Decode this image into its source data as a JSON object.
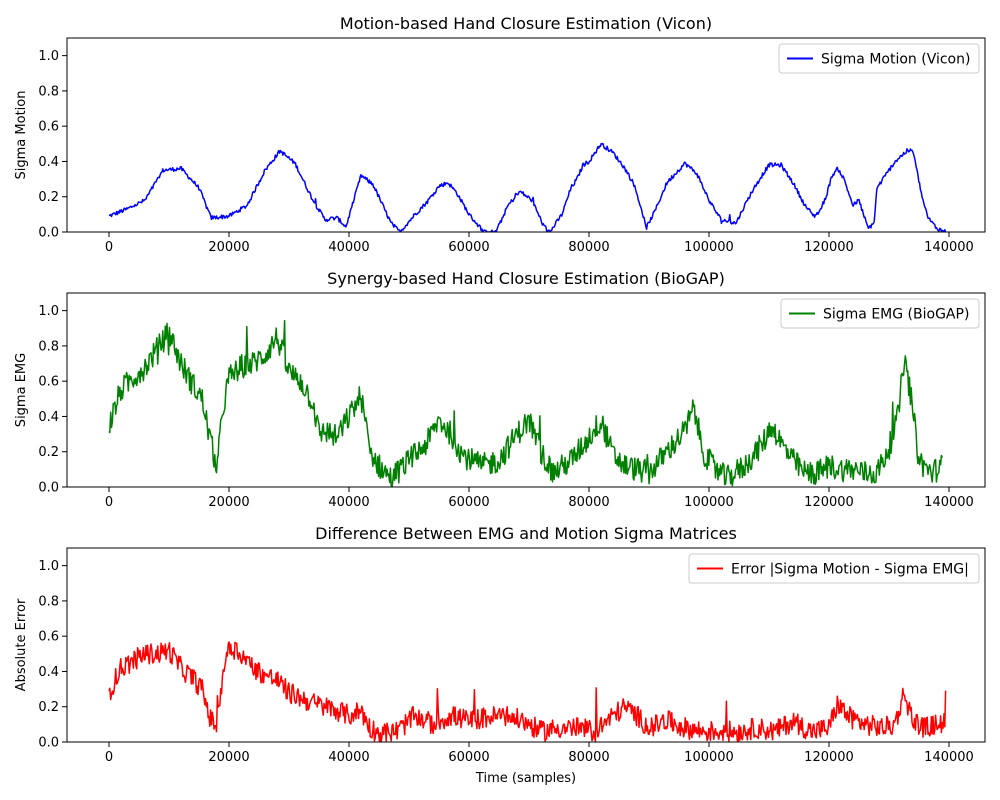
{
  "chart_data": [
    {
      "type": "line",
      "title": "Motion-based Hand Closure Estimation (Vicon)",
      "xlabel": "",
      "ylabel": "Sigma Motion",
      "xlim": [
        -7000,
        146000
      ],
      "ylim": [
        0,
        1.1
      ],
      "xticks": [
        0,
        20000,
        40000,
        60000,
        80000,
        100000,
        120000,
        140000
      ],
      "yticks": [
        0.0,
        0.2,
        0.4,
        0.6,
        0.8,
        1.0
      ],
      "legend_position": "top-right",
      "series": [
        {
          "name": "Sigma Motion (Vicon)",
          "color": "#0000ff",
          "noise": 0.012,
          "x": [
            0,
            3000,
            6000,
            9000,
            12000,
            15000,
            17000,
            20000,
            23000,
            26000,
            28500,
            31000,
            34000,
            36000,
            38000,
            39500,
            42000,
            44000,
            47000,
            48500,
            51000,
            53000,
            55000,
            56500,
            58000,
            60000,
            62500,
            64500,
            66500,
            68500,
            70500,
            72500,
            73500,
            75500,
            77000,
            78000,
            79000,
            80000,
            82000,
            84000,
            86000,
            87500,
            89000,
            89500,
            91000,
            93000,
            96000,
            98000,
            100000,
            102000,
            104500,
            105500,
            107000,
            109000,
            110000,
            112000,
            114000,
            116000,
            117500,
            118500,
            119500,
            120500,
            121500,
            122500,
            124000,
            125000,
            126500,
            127500,
            128000,
            129000,
            131000,
            133000,
            134000,
            135500,
            136500,
            138000,
            139500
          ],
          "y": [
            0.09,
            0.13,
            0.18,
            0.35,
            0.36,
            0.25,
            0.08,
            0.09,
            0.15,
            0.35,
            0.46,
            0.39,
            0.18,
            0.07,
            0.08,
            0.03,
            0.32,
            0.27,
            0.05,
            0.0,
            0.1,
            0.17,
            0.26,
            0.28,
            0.22,
            0.1,
            0.0,
            0.0,
            0.15,
            0.23,
            0.18,
            0.03,
            0.0,
            0.1,
            0.25,
            0.3,
            0.38,
            0.4,
            0.5,
            0.45,
            0.36,
            0.27,
            0.1,
            0.02,
            0.12,
            0.28,
            0.39,
            0.33,
            0.18,
            0.07,
            0.05,
            0.12,
            0.22,
            0.33,
            0.38,
            0.38,
            0.28,
            0.15,
            0.09,
            0.12,
            0.2,
            0.32,
            0.36,
            0.3,
            0.15,
            0.18,
            0.02,
            0.05,
            0.25,
            0.3,
            0.4,
            0.46,
            0.46,
            0.2,
            0.08,
            0.02,
            0.0
          ]
        }
      ]
    },
    {
      "type": "line",
      "title": "Synergy-based Hand Closure Estimation (BioGAP)",
      "xlabel": "",
      "ylabel": "Sigma EMG",
      "xlim": [
        -7000,
        146000
      ],
      "ylim": [
        0,
        1.1
      ],
      "xticks": [
        0,
        20000,
        40000,
        60000,
        80000,
        100000,
        120000,
        140000
      ],
      "yticks": [
        0.0,
        0.2,
        0.4,
        0.6,
        0.8,
        1.0
      ],
      "legend_position": "top-right",
      "series": [
        {
          "name": "Sigma EMG (BioGAP)",
          "color": "#008000",
          "noise": 0.07,
          "x": [
            0,
            2000,
            4000,
            6000,
            8000,
            10000,
            12000,
            14000,
            15500,
            17000,
            18000,
            19000,
            20000,
            22000,
            24000,
            26000,
            28000,
            30000,
            32000,
            34000,
            35000,
            36000,
            38000,
            40000,
            42000,
            43500,
            45000,
            47000,
            50000,
            53000,
            55000,
            57000,
            59000,
            62000,
            65000,
            68000,
            70000,
            72000,
            74000,
            77000,
            80000,
            82000,
            84000,
            86000,
            88000,
            90000,
            93000,
            96000,
            97500,
            99000,
            101000,
            103000,
            106000,
            109000,
            110500,
            112000,
            114000,
            116000,
            118000,
            120000,
            122000,
            124000,
            126000,
            128000,
            130000,
            131500,
            132500,
            133500,
            135000,
            137000,
            139000
          ],
          "y": [
            0.35,
            0.55,
            0.62,
            0.68,
            0.78,
            0.88,
            0.7,
            0.58,
            0.5,
            0.25,
            0.1,
            0.45,
            0.62,
            0.68,
            0.7,
            0.75,
            0.85,
            0.65,
            0.6,
            0.48,
            0.3,
            0.32,
            0.28,
            0.4,
            0.52,
            0.2,
            0.12,
            0.05,
            0.15,
            0.25,
            0.38,
            0.3,
            0.18,
            0.12,
            0.15,
            0.3,
            0.38,
            0.2,
            0.08,
            0.15,
            0.28,
            0.38,
            0.18,
            0.12,
            0.1,
            0.08,
            0.2,
            0.32,
            0.45,
            0.2,
            0.1,
            0.05,
            0.12,
            0.25,
            0.35,
            0.25,
            0.15,
            0.08,
            0.08,
            0.12,
            0.1,
            0.1,
            0.08,
            0.08,
            0.22,
            0.4,
            0.72,
            0.55,
            0.15,
            0.08,
            0.12
          ]
        }
      ]
    },
    {
      "type": "line",
      "title": "Difference Between EMG and Motion Sigma Matrices",
      "xlabel": "Time (samples)",
      "ylabel": "Absolute Error",
      "xlim": [
        -7000,
        146000
      ],
      "ylim": [
        0,
        1.1
      ],
      "xticks": [
        0,
        20000,
        40000,
        60000,
        80000,
        100000,
        120000,
        140000
      ],
      "yticks": [
        0.0,
        0.2,
        0.4,
        0.6,
        0.8,
        1.0
      ],
      "legend_position": "top-right",
      "series": [
        {
          "name": "Error |Sigma Motion - Sigma EMG|",
          "color": "#ff0000",
          "noise": 0.06,
          "x": [
            0,
            2000,
            4000,
            6000,
            8000,
            10000,
            12000,
            14000,
            15500,
            17000,
            18000,
            19000,
            20000,
            22000,
            24000,
            26000,
            28000,
            30000,
            32000,
            34000,
            36000,
            38000,
            40000,
            42000,
            43500,
            45000,
            48000,
            51000,
            54000,
            57000,
            60000,
            63000,
            66000,
            69000,
            72000,
            75000,
            78000,
            81000,
            84000,
            86000,
            88000,
            90000,
            93000,
            96000,
            99000,
            102000,
            105000,
            108000,
            111000,
            114000,
            117000,
            120000,
            121500,
            123000,
            126000,
            129000,
            131000,
            132500,
            134000,
            136000,
            138000,
            139500
          ],
          "y": [
            0.28,
            0.42,
            0.46,
            0.5,
            0.5,
            0.52,
            0.42,
            0.36,
            0.3,
            0.12,
            0.1,
            0.4,
            0.55,
            0.5,
            0.42,
            0.38,
            0.35,
            0.28,
            0.25,
            0.22,
            0.2,
            0.18,
            0.15,
            0.18,
            0.08,
            0.05,
            0.06,
            0.15,
            0.1,
            0.15,
            0.12,
            0.14,
            0.15,
            0.12,
            0.06,
            0.08,
            0.08,
            0.06,
            0.15,
            0.2,
            0.15,
            0.08,
            0.12,
            0.08,
            0.06,
            0.06,
            0.06,
            0.08,
            0.06,
            0.12,
            0.06,
            0.08,
            0.22,
            0.15,
            0.1,
            0.08,
            0.1,
            0.28,
            0.12,
            0.08,
            0.1,
            0.12
          ]
        }
      ]
    }
  ]
}
